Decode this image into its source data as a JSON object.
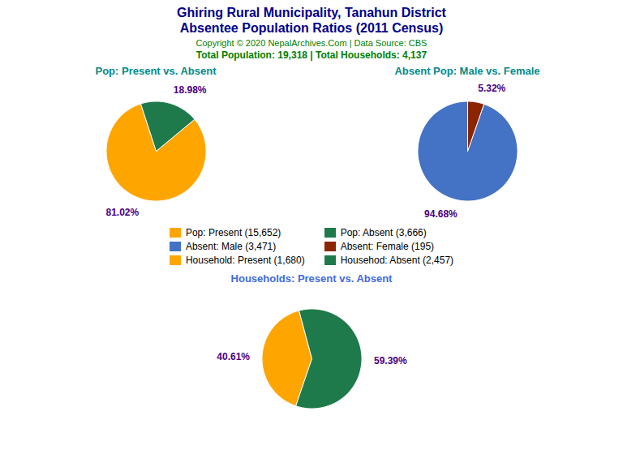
{
  "title": "Ghiring Rural Municipality, Tanahun District",
  "subtitle": "Absentee Population Ratios (2011 Census)",
  "annotations": [
    "Copyright © 2020 NepalArchives.Com | Data Source: CBS",
    "Total Population: 19,318 | Total Households: 4,137"
  ],
  "chart_data": [
    {
      "type": "pie",
      "title": "Pop: Present vs. Absent",
      "categories": [
        "Pop: Present (15,652)",
        "Pop: Absent (3,666)"
      ],
      "values": [
        81.02,
        18.98
      ],
      "value_labels": [
        "81.02%",
        "18.98%"
      ],
      "colors": [
        "#FFA500",
        "#1E7A4A"
      ],
      "data_labels": true,
      "legend": "center"
    },
    {
      "type": "pie",
      "title": "Absent Pop: Male vs. Female",
      "categories": [
        "Absent: Male (3,471)",
        "Absent: Female (195)"
      ],
      "values": [
        94.68,
        5.32
      ],
      "value_labels": [
        "94.68%",
        "5.32%"
      ],
      "colors": [
        "#4472C4",
        "#8B2500"
      ],
      "data_labels": true,
      "legend": "center"
    },
    {
      "type": "pie",
      "title": "Households: Present vs. Absent",
      "categories": [
        "Household: Present (1,680)",
        "Househod: Absent (2,457)"
      ],
      "values": [
        40.61,
        59.39
      ],
      "value_labels": [
        "40.61%",
        "59.39%"
      ],
      "colors": [
        "#FFA500",
        "#1E7A4A"
      ],
      "data_labels": true,
      "legend": "center"
    }
  ]
}
